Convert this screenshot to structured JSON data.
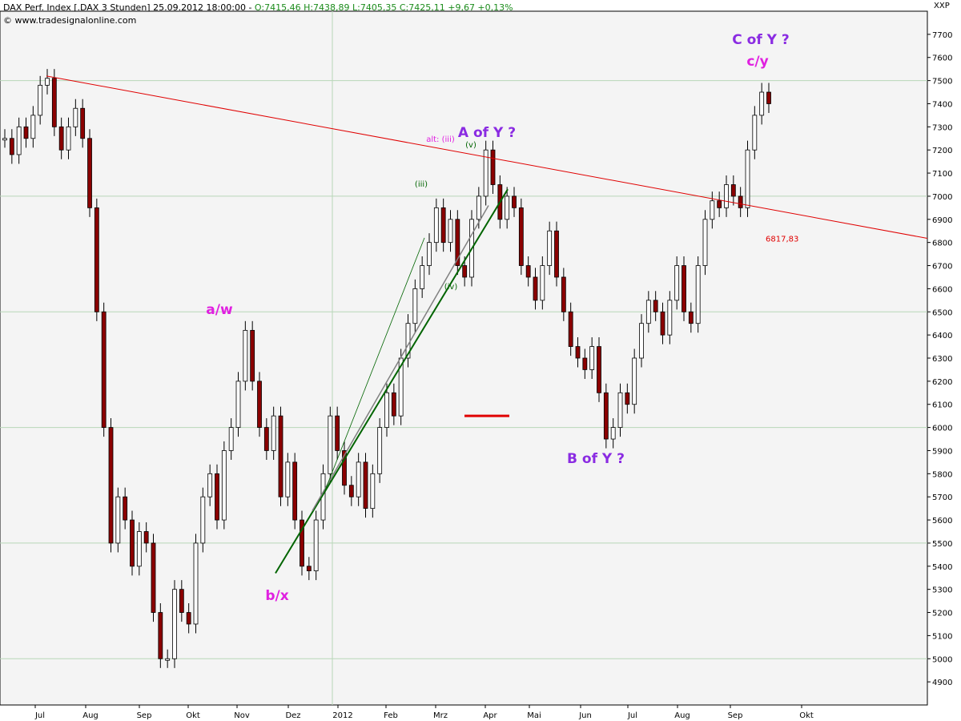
{
  "header": {
    "title": "DAX Perf. Index [.DAX 3 Stunden] 25.09.2012 18:00:00 - ",
    "ohlc": "O:7415,46 H:7438,89 L:7405,35 C:7425,11 +9,67 +0,13%",
    "source": "© www.tradesignalonline.com",
    "symbol": "XXP"
  },
  "colors": {
    "background": "#f4f4f4",
    "grid": "#b8d6b8",
    "candle_up": "#ffffff",
    "candle_down": "#8b0000",
    "trendline_red": "#e00000",
    "trendline_green": "#006400",
    "trendline_gray": "#808080",
    "label_magenta": "#e020e0",
    "label_purple": "#8a2be2"
  },
  "chart_data": {
    "type": "line",
    "ylim": [
      4800,
      7800
    ],
    "y_ticks": [
      "4900",
      "5000",
      "5100",
      "5200",
      "5300",
      "5400",
      "5500",
      "5600",
      "5700",
      "5800",
      "5900",
      "6000",
      "6100",
      "6200",
      "6300",
      "6400",
      "6500",
      "6600",
      "6700",
      "6800",
      "6900",
      "7000",
      "7100",
      "7200",
      "7300",
      "7400",
      "7500",
      "7600",
      "7700"
    ],
    "x_ticks": [
      "Jul",
      "Aug",
      "Sep",
      "Okt",
      "Nov",
      "Dez",
      "2012",
      "Feb",
      "Mrz",
      "Apr",
      "Mai",
      "Jun",
      "Jul",
      "Aug",
      "Sep",
      "Okt"
    ],
    "series": [
      {
        "values": [
          7250,
          7180,
          7300,
          7250,
          7350,
          7480,
          7510,
          7300,
          7200,
          7300,
          7380,
          7250,
          6950,
          6500,
          6000,
          5500,
          5700,
          5600,
          5400,
          5550,
          5500,
          5200,
          5000,
          5000,
          5300,
          5200,
          5150,
          5500,
          5700,
          5800,
          5600,
          5900,
          6000,
          6200,
          6420,
          6200,
          6000,
          5900,
          6050,
          5700,
          5850,
          5600,
          5400,
          5380,
          5600,
          5800,
          6050,
          5900,
          5750,
          5700,
          5850,
          5650,
          5800,
          6000,
          6150,
          6050,
          6300,
          6450,
          6600,
          6700,
          6800,
          6950,
          6800,
          6900,
          6700,
          6650,
          6900,
          7000,
          7200,
          7050,
          6900,
          7000,
          6950,
          6700,
          6650,
          6550,
          6700,
          6850,
          6650,
          6500,
          6350,
          6300,
          6250,
          6350,
          6150,
          5950,
          6000,
          6150,
          6100,
          6300,
          6450,
          6550,
          6500,
          6400,
          6550,
          6700,
          6500,
          6450,
          6700,
          6900,
          6980,
          6950,
          7050,
          7000,
          6950,
          7200,
          7350,
          7450,
          7400
        ]
      }
    ],
    "reference_line": {
      "label": "6817,83"
    },
    "annotations": [
      "a/w",
      "b/x",
      "A of Y ?",
      "B of Y ?",
      "C of Y ?",
      "c/y",
      "(iii)",
      "(v)",
      "(iv)",
      "alt: (iii)"
    ]
  }
}
